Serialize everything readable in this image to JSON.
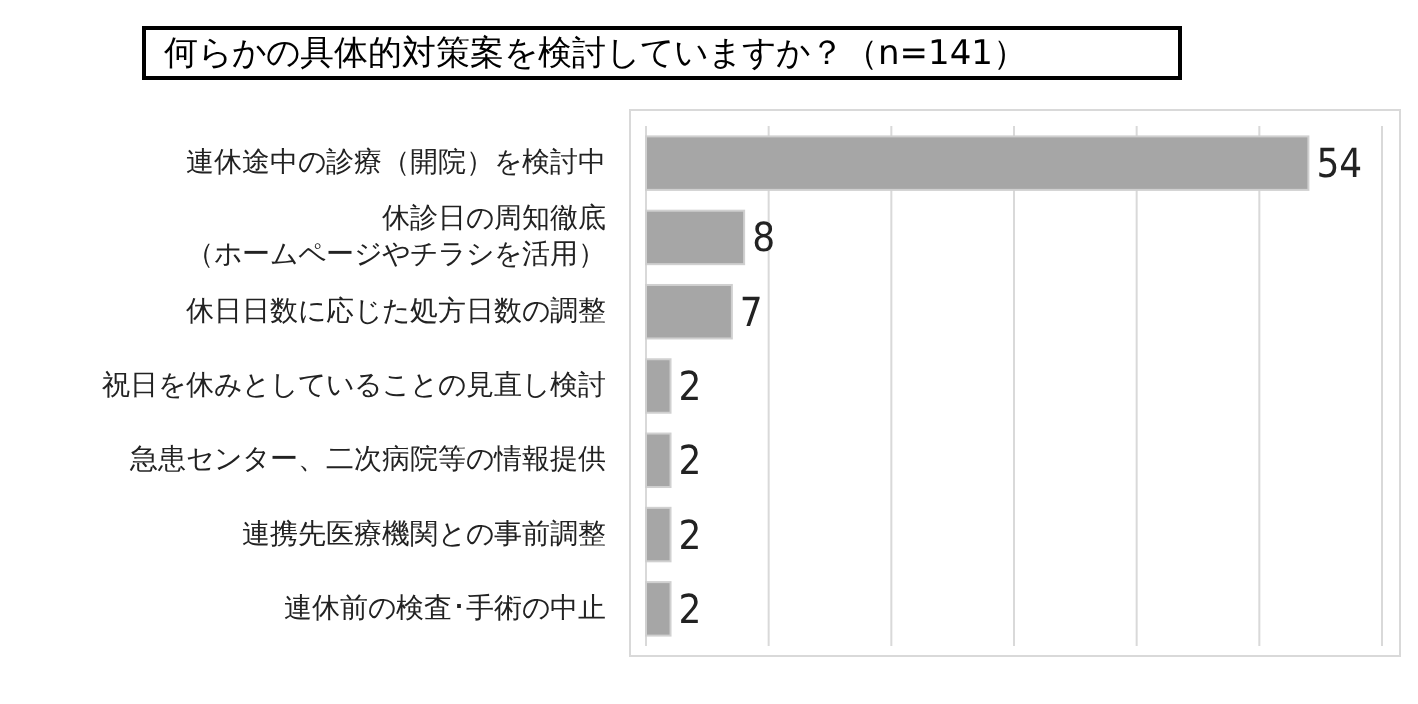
{
  "chart_data": {
    "type": "bar",
    "orientation": "horizontal",
    "title": "何らかの具体的対策案を検討していますか？（n=141）",
    "categories": [
      "連休途中の診療（開院）を検討中",
      "休診日の周知徹底（ホームページやチラシを活用）",
      "休日日数に応じた処方日数の調整",
      "祝日を休みとしていることの見直し検討",
      "急患センター、二次病院等の情報提供",
      "連携先医療機関との事前調整",
      "連休前の検査･手術の中止"
    ],
    "values": [
      54,
      8,
      7,
      2,
      2,
      2,
      2
    ],
    "color": "#a6a6a6",
    "xlim": [
      0,
      60
    ],
    "xticks": [
      {
        "value": 0,
        "label": null
      },
      {
        "value": 10,
        "label": null
      },
      {
        "value": 20,
        "label": null
      },
      {
        "value": 30,
        "label": null
      },
      {
        "value": 40,
        "label": null
      },
      {
        "value": 50,
        "label": null
      },
      {
        "value": 60,
        "label": null
      }
    ],
    "grid": "x",
    "data_labels": true
  }
}
